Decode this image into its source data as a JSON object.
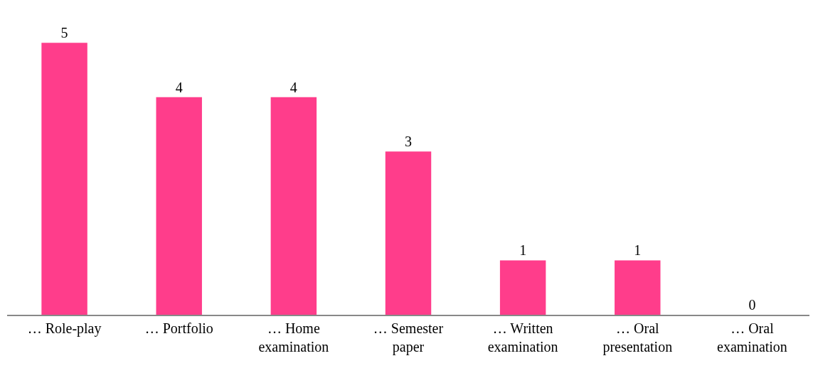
{
  "chart_data": {
    "type": "bar",
    "categories": [
      "… Role-play",
      "… Portfolio",
      "… Home\nexamination",
      "… Semester\npaper",
      "… Written\nexamination",
      "… Oral\npresentation",
      "… Oral\nexamination"
    ],
    "values": [
      5,
      4,
      4,
      3,
      1,
      1,
      0
    ],
    "color": "#ff3d8b",
    "data_labels": true
  }
}
